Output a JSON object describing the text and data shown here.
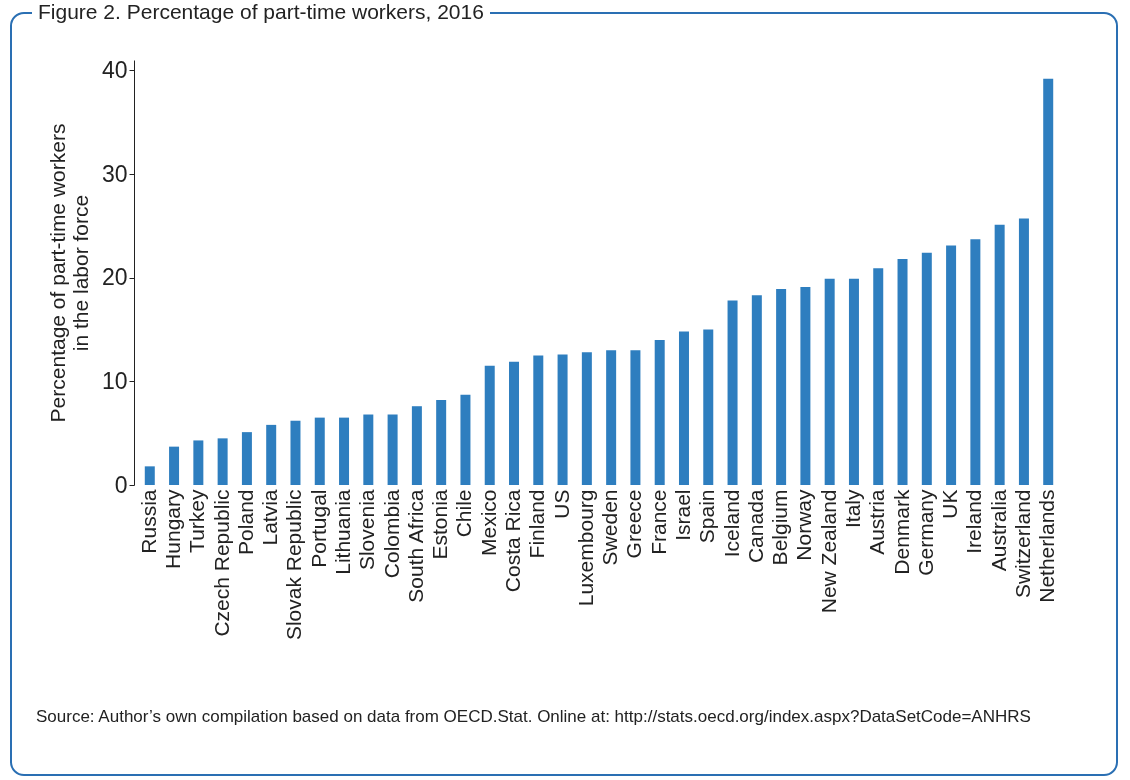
{
  "chart_data": {
    "type": "bar",
    "title": "Figure 2. Percentage of part-time workers, 2016",
    "ylabel": "Percentage of part-time workers\nin the labor force",
    "categories": [
      "Russia",
      "Hungary",
      "Turkey",
      "Czech Republic",
      "Poland",
      "Latvia",
      "Slovak Republic",
      "Portugal",
      "Lithuania",
      "Slovenia",
      "Colombia",
      "South Africa",
      "Estonia",
      "Chile",
      "Mexico",
      "Costa Rica",
      "Finland",
      "US",
      "Luxembourg",
      "Sweden",
      "Greece",
      "France",
      "Israel",
      "Spain",
      "Iceland",
      "Canada",
      "Belgium",
      "Norway",
      "New Zealand",
      "Italy",
      "Austria",
      "Denmark",
      "Germany",
      "UK",
      "Ireland",
      "Australia",
      "Switzerland",
      "Netherlands"
    ],
    "values": [
      1.8,
      3.7,
      4.3,
      4.5,
      5.1,
      5.8,
      6.2,
      6.5,
      6.5,
      6.8,
      6.8,
      7.6,
      8.2,
      8.7,
      11.5,
      11.9,
      12.5,
      12.6,
      12.8,
      13.0,
      13.0,
      14.0,
      14.8,
      15.0,
      17.8,
      18.3,
      18.9,
      19.1,
      19.9,
      19.9,
      20.9,
      21.8,
      22.4,
      23.1,
      23.7,
      25.1,
      25.7,
      39.2
    ],
    "color": "#2e7ebf",
    "ylim": [
      0,
      41
    ],
    "yticks": [
      0,
      10,
      20,
      30,
      40
    ],
    "grid": false,
    "annotations": [
      "Source: Author’s own compilation based on data from OECD.Stat. Online at: http://stats.oecd.org/index.aspx?DataSetCode=ANHRS"
    ]
  }
}
